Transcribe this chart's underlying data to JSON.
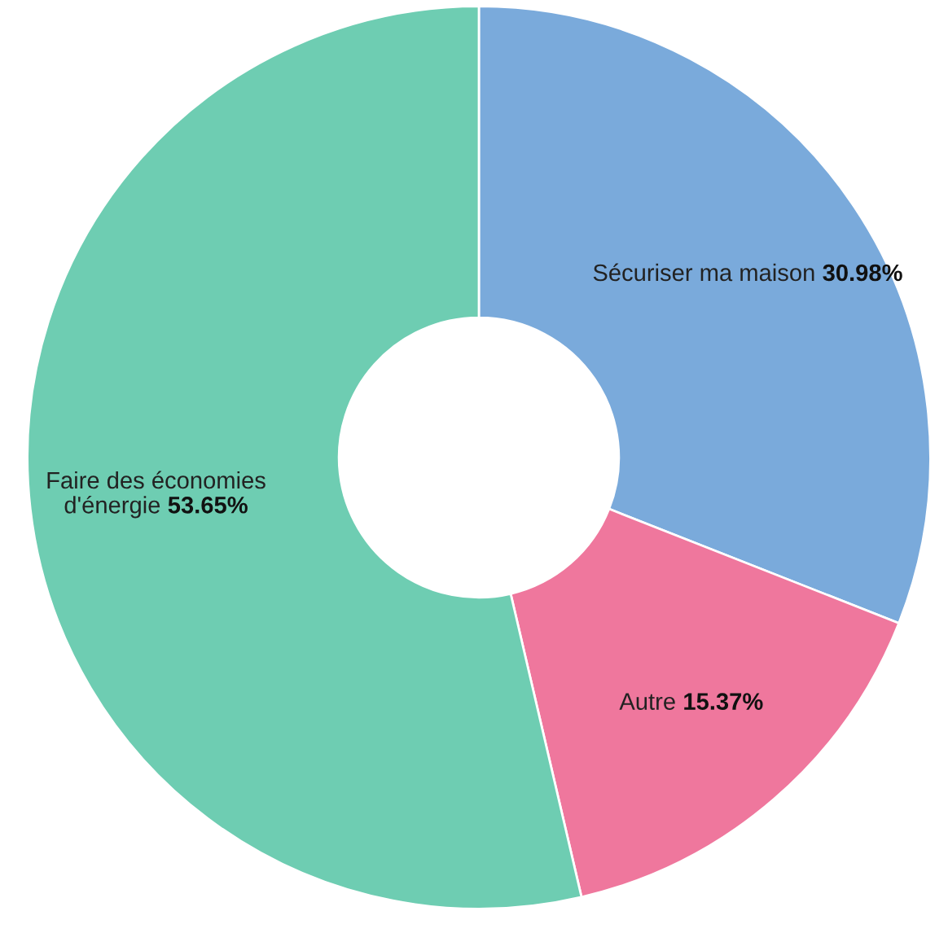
{
  "chart_data": {
    "type": "donut",
    "categories": [
      "Sécuriser ma maison",
      "Autre",
      "Faire des économies\nd'énergie"
    ],
    "values": [
      30.98,
      15.37,
      53.65
    ],
    "colors": [
      "#7aaadb",
      "#ef779d",
      "#6ecdb2"
    ],
    "value_labels": [
      "30.98%",
      "15.37%",
      "53.65%"
    ],
    "legend": false
  }
}
